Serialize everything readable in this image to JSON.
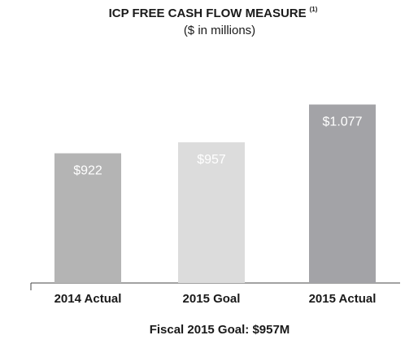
{
  "chart_data": {
    "type": "bar",
    "title": "ICP FREE CASH FLOW MEASURE",
    "title_note": "(1)",
    "subtitle": "($ in millions)",
    "categories": [
      "2014 Actual",
      "2015 Goal",
      "2015 Actual"
    ],
    "values": [
      922,
      957,
      1077
    ],
    "value_labels": [
      "$922",
      "$957",
      "$1.077"
    ],
    "colors": [
      "#b4b4b4",
      "#dcdcdc",
      "#a3a3a7"
    ],
    "ylim": [
      510,
      1130
    ],
    "footnote": {
      "text": "Fiscal 2015 Goal:",
      "value": "$957M"
    }
  }
}
